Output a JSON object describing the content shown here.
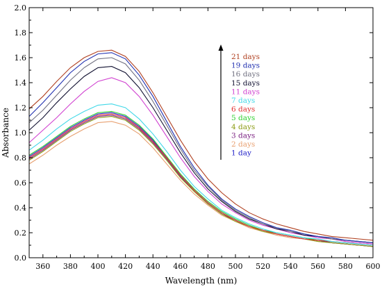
{
  "chart_data": {
    "type": "line",
    "title": "",
    "xlabel": "Wavelength (nm)",
    "ylabel": "Absorbance",
    "xlim": [
      350,
      600
    ],
    "ylim": [
      0,
      2.0
    ],
    "xticks": [
      360,
      380,
      400,
      420,
      440,
      460,
      480,
      500,
      520,
      540,
      560,
      580,
      600
    ],
    "yticks": [
      0.0,
      0.2,
      0.4,
      0.6,
      0.8,
      1.0,
      1.2,
      1.4,
      1.6,
      1.8,
      2.0
    ],
    "ytick_labels": [
      "0.0",
      "0.2",
      "0.4",
      "0.6",
      "0.8",
      "1.0",
      "1.2",
      "1.4",
      "1.6",
      "1.8",
      "2.0"
    ],
    "x": [
      350,
      360,
      370,
      380,
      390,
      400,
      410,
      420,
      430,
      440,
      450,
      460,
      470,
      480,
      490,
      500,
      510,
      520,
      530,
      540,
      550,
      560,
      570,
      580,
      590,
      600
    ],
    "legend_placement": "center-right",
    "series": [
      {
        "name": "1 day",
        "color": "#2020c8",
        "values": [
          0.81,
          0.88,
          0.96,
          1.04,
          1.1,
          1.15,
          1.16,
          1.13,
          1.05,
          0.94,
          0.8,
          0.66,
          0.54,
          0.44,
          0.36,
          0.3,
          0.25,
          0.22,
          0.19,
          0.17,
          0.15,
          0.14,
          0.12,
          0.11,
          0.1,
          0.09
        ]
      },
      {
        "name": "2 days",
        "color": "#e8a070",
        "values": [
          0.75,
          0.82,
          0.9,
          0.97,
          1.03,
          1.08,
          1.09,
          1.06,
          0.99,
          0.88,
          0.75,
          0.62,
          0.51,
          0.42,
          0.34,
          0.29,
          0.24,
          0.21,
          0.18,
          0.16,
          0.15,
          0.13,
          0.12,
          0.11,
          0.1,
          0.09
        ]
      },
      {
        "name": "3 days",
        "color": "#7a2080",
        "values": [
          0.79,
          0.86,
          0.94,
          1.02,
          1.08,
          1.13,
          1.14,
          1.11,
          1.03,
          0.92,
          0.79,
          0.65,
          0.53,
          0.43,
          0.35,
          0.3,
          0.25,
          0.22,
          0.19,
          0.17,
          0.15,
          0.14,
          0.12,
          0.11,
          0.1,
          0.09
        ]
      },
      {
        "name": "4 days",
        "color": "#8a9a10",
        "values": [
          0.78,
          0.85,
          0.93,
          1.01,
          1.07,
          1.12,
          1.13,
          1.1,
          1.02,
          0.91,
          0.78,
          0.64,
          0.53,
          0.43,
          0.35,
          0.29,
          0.25,
          0.21,
          0.19,
          0.17,
          0.15,
          0.13,
          0.12,
          0.11,
          0.1,
          0.09
        ]
      },
      {
        "name": "5 days",
        "color": "#30d030",
        "values": [
          0.82,
          0.89,
          0.97,
          1.05,
          1.11,
          1.16,
          1.17,
          1.14,
          1.06,
          0.95,
          0.81,
          0.67,
          0.55,
          0.45,
          0.37,
          0.31,
          0.26,
          0.22,
          0.2,
          0.18,
          0.16,
          0.14,
          0.13,
          0.12,
          0.11,
          0.1
        ]
      },
      {
        "name": "6 days",
        "color": "#e03030",
        "values": [
          0.8,
          0.87,
          0.95,
          1.03,
          1.09,
          1.14,
          1.15,
          1.12,
          1.04,
          0.93,
          0.8,
          0.66,
          0.54,
          0.44,
          0.36,
          0.3,
          0.25,
          0.22,
          0.19,
          0.17,
          0.15,
          0.14,
          0.13,
          0.12,
          0.11,
          0.1
        ]
      },
      {
        "name": "7 days",
        "color": "#40d8e8",
        "values": [
          0.86,
          0.94,
          1.03,
          1.11,
          1.17,
          1.22,
          1.23,
          1.2,
          1.11,
          0.99,
          0.85,
          0.7,
          0.57,
          0.47,
          0.38,
          0.32,
          0.27,
          0.23,
          0.2,
          0.18,
          0.16,
          0.15,
          0.13,
          0.12,
          0.11,
          0.1
        ]
      },
      {
        "name": "11 days",
        "color": "#d040d0",
        "values": [
          0.92,
          1.02,
          1.12,
          1.23,
          1.33,
          1.41,
          1.44,
          1.4,
          1.29,
          1.14,
          0.97,
          0.8,
          0.65,
          0.53,
          0.43,
          0.36,
          0.3,
          0.26,
          0.23,
          0.2,
          0.18,
          0.16,
          0.15,
          0.13,
          0.12,
          0.11
        ]
      },
      {
        "name": "15 days",
        "color": "#101030",
        "values": [
          1.02,
          1.12,
          1.24,
          1.35,
          1.45,
          1.52,
          1.53,
          1.48,
          1.36,
          1.2,
          1.02,
          0.84,
          0.68,
          0.55,
          0.45,
          0.37,
          0.31,
          0.27,
          0.23,
          0.21,
          0.18,
          0.17,
          0.15,
          0.14,
          0.13,
          0.12
        ]
      },
      {
        "name": "16 days",
        "color": "#707080",
        "values": [
          1.08,
          1.18,
          1.3,
          1.42,
          1.52,
          1.59,
          1.6,
          1.55,
          1.42,
          1.25,
          1.06,
          0.87,
          0.7,
          0.57,
          0.46,
          0.38,
          0.32,
          0.27,
          0.24,
          0.21,
          0.19,
          0.17,
          0.15,
          0.14,
          0.13,
          0.12
        ]
      },
      {
        "name": "19 days",
        "color": "#2030b0",
        "values": [
          1.13,
          1.24,
          1.36,
          1.48,
          1.57,
          1.63,
          1.64,
          1.59,
          1.46,
          1.29,
          1.09,
          0.89,
          0.72,
          0.58,
          0.47,
          0.39,
          0.33,
          0.28,
          0.24,
          0.22,
          0.19,
          0.17,
          0.16,
          0.14,
          0.13,
          0.12
        ]
      },
      {
        "name": "21 days",
        "color": "#b04020",
        "values": [
          1.19,
          1.29,
          1.41,
          1.52,
          1.6,
          1.65,
          1.66,
          1.61,
          1.49,
          1.32,
          1.13,
          0.94,
          0.77,
          0.63,
          0.52,
          0.43,
          0.36,
          0.31,
          0.27,
          0.24,
          0.21,
          0.19,
          0.17,
          0.16,
          0.15,
          0.14
        ]
      }
    ]
  }
}
